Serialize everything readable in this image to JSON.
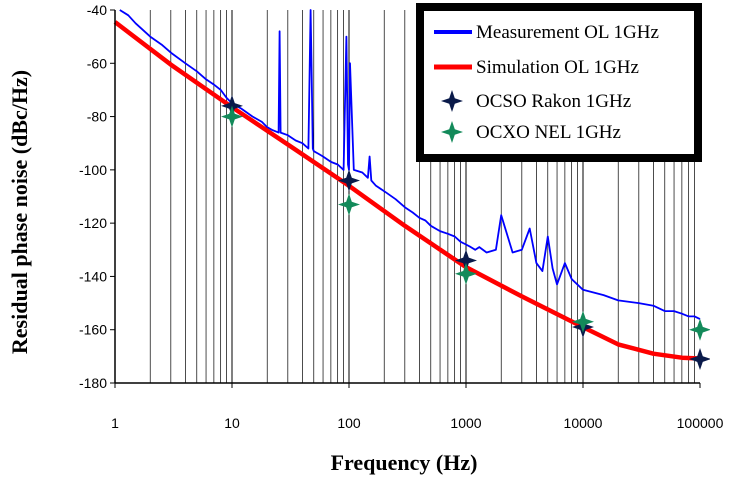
{
  "chart_data": {
    "type": "line",
    "title": "",
    "xlabel": "Frequency (Hz)",
    "ylabel": "Residual phase noise (dBc/Hz)",
    "x_scale": "log",
    "xlim": [
      1,
      100000
    ],
    "ylim": [
      -180,
      -40
    ],
    "x_ticks": [
      "1",
      "10",
      "100",
      "1000",
      "10000",
      "100000"
    ],
    "y_ticks": [
      "-40",
      "-60",
      "-80",
      "-100",
      "-120",
      "-140",
      "-160",
      "-180"
    ],
    "grid": "vertical-log",
    "legend_position": "top-right",
    "series": [
      {
        "name": "Measurement OL 1GHz",
        "kind": "line",
        "color": "#0000ff",
        "x": [
          1.1,
          1.3,
          1.5,
          2,
          2.5,
          3,
          4,
          5,
          6,
          7,
          8,
          9,
          10,
          12,
          15,
          18,
          20,
          22,
          25,
          25.5,
          26,
          30,
          35,
          40,
          45,
          47,
          48,
          49,
          50,
          55,
          60,
          70,
          80,
          90,
          95,
          98,
          100,
          102,
          110,
          130,
          145,
          150,
          155,
          170,
          200,
          250,
          300,
          350,
          400,
          450,
          500,
          600,
          700,
          800,
          900,
          1000,
          1100,
          1200,
          1300,
          1500,
          1800,
          2000,
          2500,
          3000,
          3500,
          4000,
          4500,
          5000,
          5500,
          6000,
          7000,
          8000,
          10000,
          15000,
          20000,
          30000,
          40000,
          50000,
          60000,
          70000,
          80000,
          90000,
          100000
        ],
        "y": [
          -40,
          -42,
          -45,
          -50,
          -53,
          -56,
          -60,
          -63,
          -66,
          -68,
          -70,
          -73,
          -75,
          -77,
          -80,
          -82,
          -84,
          -85,
          -86,
          -48,
          -86,
          -87,
          -89,
          -90,
          -92,
          -40,
          -65,
          -92,
          -93,
          -94,
          -95,
          -97,
          -98,
          -100,
          -50,
          -98,
          -100,
          -60,
          -100,
          -101,
          -103,
          -95,
          -104,
          -106,
          -108,
          -111,
          -114,
          -116,
          -118,
          -119,
          -121,
          -123,
          -124,
          -125,
          -127,
          -128,
          -129,
          -130,
          -129,
          -131,
          -130,
          -117,
          -131,
          -130,
          -122,
          -135,
          -138,
          -125,
          -137,
          -143,
          -135,
          -141,
          -145,
          -147,
          -149,
          -150,
          -151,
          -153,
          -153,
          -154,
          -155,
          -155,
          -156
        ]
      },
      {
        "name": "Simulation OL 1GHz",
        "kind": "line",
        "color": "#ff0000",
        "x": [
          1,
          3,
          10,
          30,
          100,
          300,
          1000,
          3000,
          10000,
          20000,
          40000,
          70000,
          100000
        ],
        "y": [
          -44.5,
          -60.5,
          -76.5,
          -90.5,
          -106,
          -121,
          -136.5,
          -147.5,
          -159,
          -165.5,
          -169,
          -170.5,
          -170.8
        ]
      },
      {
        "name": "OCSO Rakon 1GHz",
        "kind": "star",
        "color": "#0a1a4a",
        "x": [
          10,
          100,
          1000,
          10000,
          100000
        ],
        "y": [
          -76,
          -104,
          -134,
          -159,
          -171
        ]
      },
      {
        "name": "OCXO NEL 1GHz",
        "kind": "star",
        "color": "#138a5a",
        "x": [
          10,
          100,
          1000,
          10000,
          100000
        ],
        "y": [
          -80,
          -113,
          -139,
          -157,
          -160
        ]
      }
    ]
  }
}
